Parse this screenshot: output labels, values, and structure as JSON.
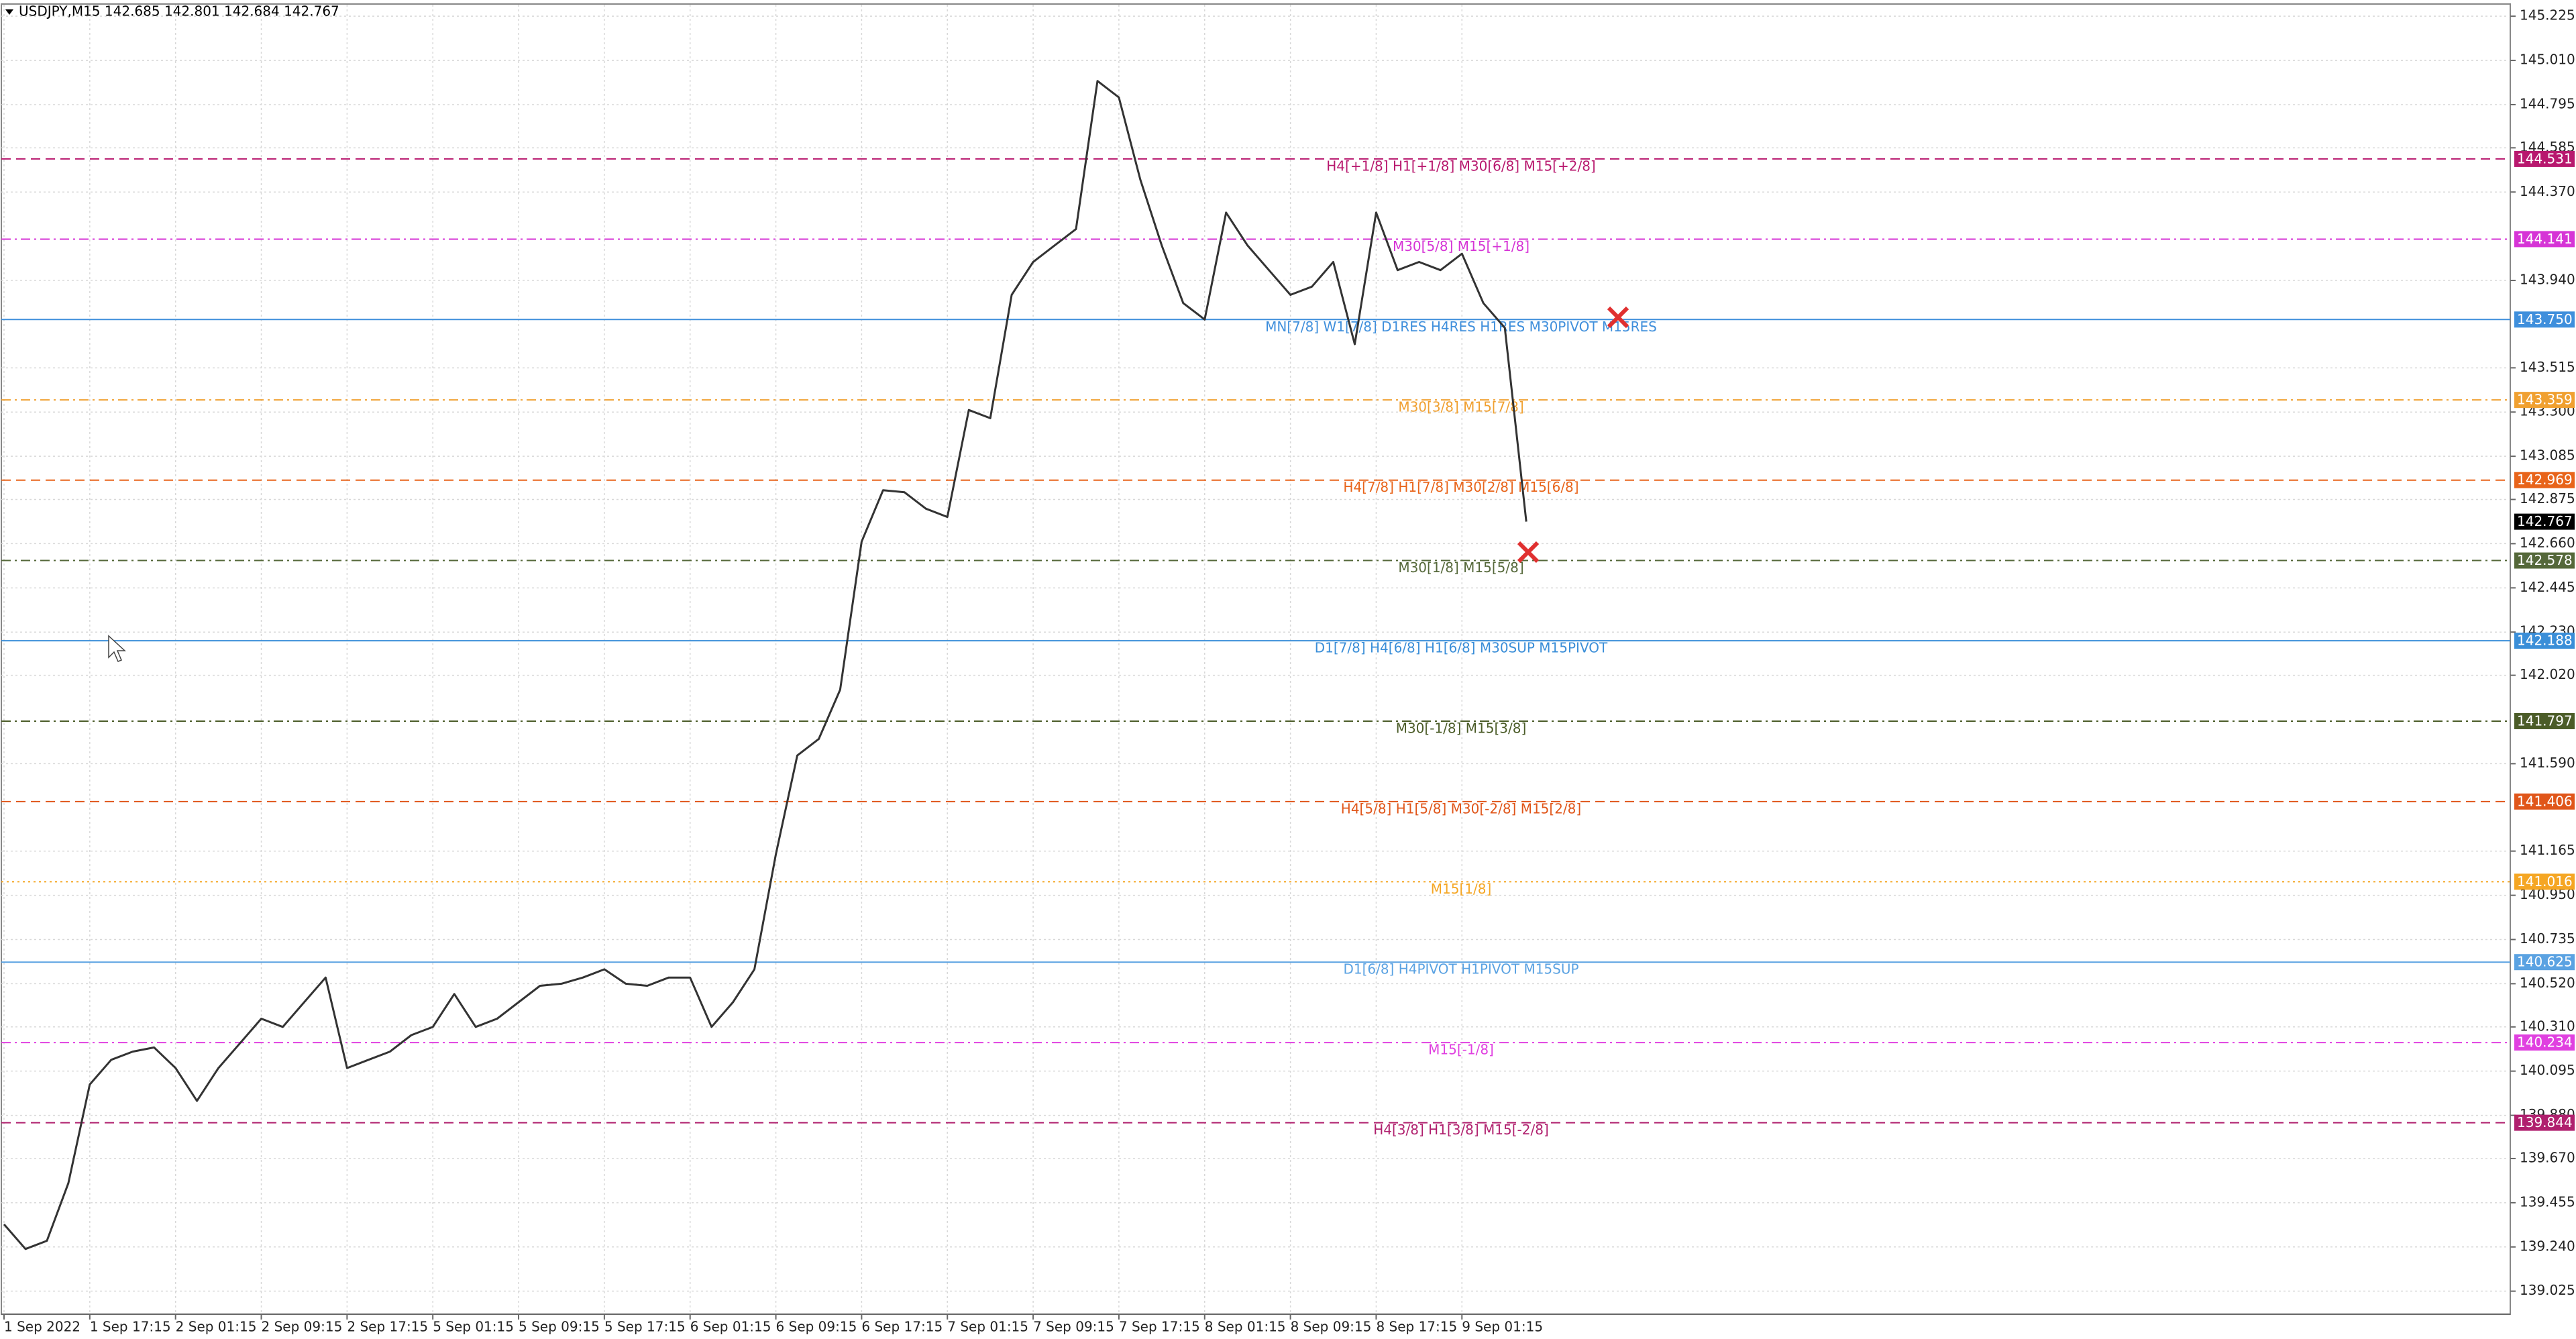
{
  "chart_data": {
    "type": "line",
    "title": "USDJPY,M15  142.685 142.801 142.684 142.767",
    "categories": [
      "1 Sep 2022",
      null,
      null,
      null,
      "1 Sep 17:15",
      null,
      null,
      null,
      "2 Sep 01:15",
      null,
      null,
      null,
      "2 Sep 09:15",
      null,
      null,
      null,
      "2 Sep 17:15",
      null,
      null,
      null,
      "5 Sep 01:15",
      null,
      null,
      null,
      "5 Sep 09:15",
      null,
      null,
      null,
      "5 Sep 17:15",
      null,
      null,
      null,
      "6 Sep 01:15",
      null,
      null,
      null,
      "6 Sep 09:15",
      null,
      null,
      null,
      "6 Sep 17:15",
      null,
      null,
      null,
      "7 Sep 01:15",
      null,
      null,
      null,
      "7 Sep 09:15",
      null,
      null,
      null,
      "7 Sep 17:15",
      null,
      null,
      null,
      "8 Sep 01:15",
      null,
      null,
      null,
      "8 Sep 09:15",
      null,
      null,
      null,
      "8 Sep 17:15",
      null,
      null,
      null,
      "9 Sep 01:15",
      null,
      null,
      null
    ],
    "values": [
      139.35,
      139.23,
      139.27,
      139.55,
      140.03,
      140.15,
      140.19,
      140.21,
      140.11,
      139.95,
      140.11,
      140.23,
      140.35,
      140.31,
      140.43,
      140.55,
      140.11,
      140.15,
      140.19,
      140.27,
      140.31,
      140.47,
      140.31,
      140.35,
      140.43,
      140.51,
      140.52,
      140.55,
      140.59,
      140.52,
      140.51,
      140.55,
      140.55,
      140.31,
      140.43,
      140.59,
      141.15,
      141.63,
      141.71,
      141.95,
      142.67,
      142.92,
      142.91,
      142.83,
      142.79,
      143.31,
      143.27,
      143.87,
      144.03,
      144.11,
      144.19,
      144.91,
      144.83,
      144.43,
      144.11,
      143.83,
      143.75,
      144.27,
      144.11,
      143.99,
      143.87,
      143.91,
      144.03,
      143.63,
      144.27,
      143.99,
      144.03,
      143.99,
      144.07,
      143.83,
      143.71,
      142.767
    ],
    "color": "#333333",
    "ylim": [
      138.913,
      145.281
    ],
    "yticks": [
      {
        "value": 145.225,
        "label": "145.225"
      },
      {
        "value": 145.01,
        "label": "145.010"
      },
      {
        "value": 144.795,
        "label": "144.795"
      },
      {
        "value": 144.585,
        "label": "144.585"
      },
      {
        "value": 144.37,
        "label": "144.370"
      },
      {
        "value": 143.94,
        "label": "143.940"
      },
      {
        "value": 143.515,
        "label": "143.515"
      },
      {
        "value": 143.3,
        "label": "143.300"
      },
      {
        "value": 143.085,
        "label": "143.085"
      },
      {
        "value": 142.875,
        "label": "142.875"
      },
      {
        "value": 142.66,
        "label": "142.660"
      },
      {
        "value": 142.445,
        "label": "142.445"
      },
      {
        "value": 142.23,
        "label": "142.230"
      },
      {
        "value": 142.02,
        "label": "142.020"
      },
      {
        "value": 141.59,
        "label": "141.590"
      },
      {
        "value": 141.165,
        "label": "141.165"
      },
      {
        "value": 140.95,
        "label": "140.950"
      },
      {
        "value": 140.735,
        "label": "140.735"
      },
      {
        "value": 140.52,
        "label": "140.520"
      },
      {
        "value": 140.31,
        "label": "140.310"
      },
      {
        "value": 140.095,
        "label": "140.095"
      },
      {
        "value": 139.88,
        "label": "139.880"
      },
      {
        "value": 139.67,
        "label": "139.670"
      },
      {
        "value": 139.455,
        "label": "139.455"
      },
      {
        "value": 139.24,
        "label": "139.240"
      },
      {
        "value": 139.025,
        "label": "139.025"
      }
    ],
    "grid": true,
    "levels": [
      {
        "value": 144.531,
        "label": "144.531",
        "text": "H4[+1/8] H1[+1/8] M30[6/8] M15[+2/8]",
        "color": "#b8186e",
        "style": "dashed"
      },
      {
        "value": 144.141,
        "label": "144.141",
        "text": "M30[5/8] M15[+1/8]",
        "color": "#d634d6",
        "style": "dashdot"
      },
      {
        "value": 143.75,
        "label": "143.750",
        "text": "MN[7/8] W1[7/8] D1RES H4RES H1RES M30PIVOT M15RES",
        "color": "#3f8fdc",
        "style": "solid"
      },
      {
        "value": 143.359,
        "label": "143.359",
        "text": "M30[3/8] M15[7/8]",
        "color": "#f0a030",
        "style": "dashdot"
      },
      {
        "value": 142.969,
        "label": "142.969",
        "text": "H4[7/8] H1[7/8] M30[2/8] M15[6/8]",
        "color": "#e8641a",
        "style": "dashed"
      },
      {
        "value": 142.578,
        "label": "142.578",
        "text": "M30[1/8] M15[5/8]",
        "color": "#55683a",
        "style": "dashdot"
      },
      {
        "value": 142.188,
        "label": "142.188",
        "text": "D1[7/8] H4[6/8] H1[6/8] M30SUP M15PIVOT",
        "color": "#3a8ed8",
        "style": "solid"
      },
      {
        "value": 141.797,
        "label": "141.797",
        "text": "M30[-1/8] M15[3/8]",
        "color": "#4b5c28",
        "style": "dashdot"
      },
      {
        "value": 141.406,
        "label": "141.406",
        "text": "H4[5/8] H1[5/8] M30[-2/8] M15[2/8]",
        "color": "#e0561a",
        "style": "dashed"
      },
      {
        "value": 141.016,
        "label": "141.016",
        "text": "M15[1/8]",
        "color": "#f5a623",
        "style": "dotted"
      },
      {
        "value": 140.625,
        "label": "140.625",
        "text": "D1[6/8] H4PIVOT H1PIVOT M15SUP",
        "color": "#5aa2e2",
        "style": "solid"
      },
      {
        "value": 140.234,
        "label": "140.234",
        "text": "M15[-1/8]",
        "color": "#e040e0",
        "style": "dashdot"
      },
      {
        "value": 139.844,
        "label": "139.844",
        "text": "H4[3/8] H1[3/8] M15[-2/8]",
        "color": "#b0206e",
        "style": "dashed"
      }
    ],
    "last_price": 142.767
  }
}
